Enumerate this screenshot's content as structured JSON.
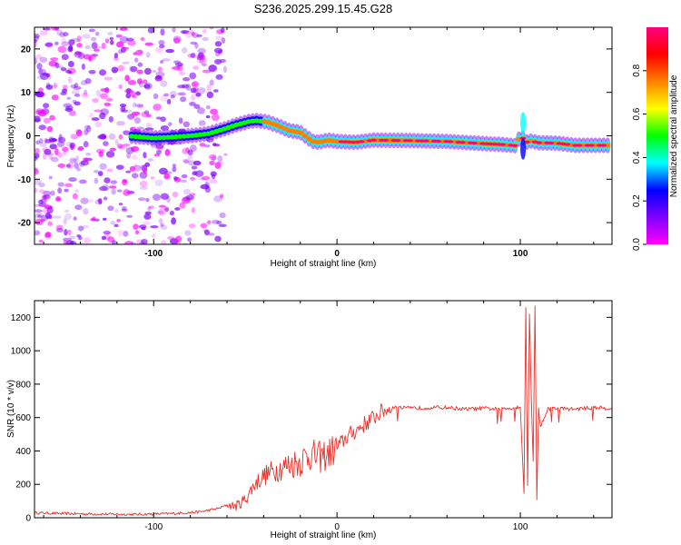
{
  "figure_title": "S236.2025.299.15.45.G28",
  "colors": {
    "trace": "#e8302a",
    "axis": "#000000",
    "background": "#ffffff"
  },
  "chart_data": [
    {
      "type": "heatmap",
      "title": "S236.2025.299.15.45.G28",
      "xlabel": "Height of straight line (km)",
      "ylabel": "Frequency (Hz)",
      "xlim": [
        -165,
        150
      ],
      "ylim": [
        -25,
        25
      ],
      "xticks": [
        -100,
        0,
        100
      ],
      "xtick_labels": [
        "-100",
        "0",
        "100"
      ],
      "yticks": [
        -20,
        -10,
        0,
        10,
        20
      ],
      "ytick_labels": [
        "-20",
        "-10",
        "0",
        "10",
        "20"
      ],
      "colorbar": {
        "label": "Normalized spectral amplitude",
        "range": [
          0,
          1
        ],
        "ticks": [
          0,
          0.2,
          0.4,
          0.6,
          0.8
        ],
        "tick_labels": [
          "0.0",
          "0.2",
          "0.4",
          "0.6",
          "0.8"
        ],
        "stops": [
          "#ff00ff",
          "#8000ff",
          "#0000ff",
          "#00ffff",
          "#00ff00",
          "#ffff00",
          "#ff8000",
          "#ff0000",
          "#ff0080"
        ]
      },
      "ridge": {
        "x": [
          -115,
          -100,
          -90,
          -80,
          -70,
          -62,
          -55,
          -48,
          -44,
          -38,
          -32,
          -26,
          -20,
          -16,
          -13,
          -10,
          -5,
          0,
          10,
          20,
          40,
          60,
          80,
          90,
          98,
          100,
          103,
          106,
          110,
          120,
          130,
          150
        ],
        "frequency_hz": [
          0,
          -0.5,
          -0.3,
          0,
          0.5,
          1.5,
          2.5,
          3.3,
          3.5,
          3.2,
          2.3,
          1.2,
          0.8,
          -0.5,
          -1.3,
          -1.5,
          -1,
          -1.3,
          -1.5,
          -1,
          -1.1,
          -1.3,
          -1.8,
          -2,
          -2.3,
          0.2,
          -1.5,
          -1.2,
          -1.6,
          -1.7,
          -2.2,
          -2.2
        ]
      }
    },
    {
      "type": "line",
      "xlabel": "Height of straight line (km)",
      "ylabel": "SNR (10 * v/v)",
      "xlim": [
        -165,
        150
      ],
      "ylim": [
        0,
        1300
      ],
      "xticks": [
        -100,
        0,
        100
      ],
      "xtick_labels": [
        "-100",
        "0",
        "100"
      ],
      "yticks": [
        0,
        200,
        400,
        600,
        800,
        1000,
        1200
      ],
      "ytick_labels": [
        "0",
        "200",
        "400",
        "600",
        "800",
        "1000",
        "1200"
      ],
      "series": [
        {
          "name": "SNR",
          "x": [
            -165,
            -150,
            -130,
            -110,
            -90,
            -75,
            -65,
            -60,
            -55,
            -50,
            -45,
            -40,
            -35,
            -30,
            -25,
            -20,
            -15,
            -10,
            -5,
            0,
            5,
            10,
            15,
            20,
            25,
            30,
            40,
            50,
            60,
            70,
            80,
            90,
            100,
            102,
            103,
            104,
            105,
            106,
            107,
            108,
            109,
            110,
            111,
            115,
            120,
            130,
            140,
            150
          ],
          "y": [
            30,
            25,
            22,
            20,
            25,
            35,
            55,
            75,
            70,
            110,
            200,
            250,
            280,
            300,
            320,
            340,
            380,
            360,
            380,
            420,
            480,
            520,
            560,
            600,
            640,
            660,
            655,
            660,
            660,
            650,
            655,
            650,
            665,
            150,
            1250,
            200,
            1220,
            700,
            350,
            1280,
            100,
            650,
            550,
            650,
            655,
            650,
            660,
            655
          ]
        }
      ]
    }
  ]
}
